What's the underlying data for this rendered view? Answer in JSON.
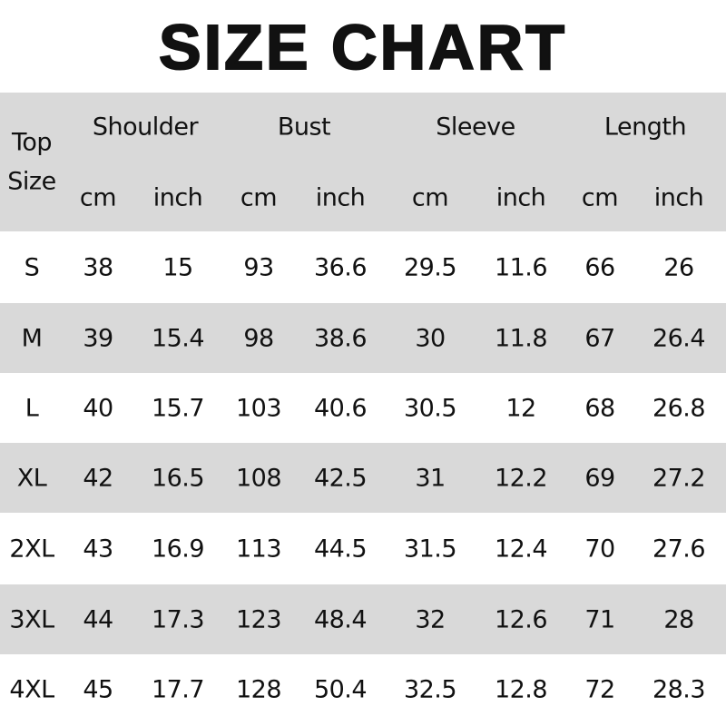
{
  "title": "SIZE CHART",
  "colors": {
    "band": "#d9d9d9",
    "text": "#111111"
  },
  "header": {
    "size_label_line1": "Top",
    "size_label_line2": "Size",
    "groups": [
      "Shoulder",
      "Bust",
      "Sleeve",
      "Length"
    ],
    "units": [
      "cm",
      "inch",
      "cm",
      "inch",
      "cm",
      "inch",
      "cm",
      "inch"
    ]
  },
  "rows": [
    {
      "size": "S",
      "values": [
        "38",
        "15",
        "93",
        "36.6",
        "29.5",
        "11.6",
        "66",
        "26"
      ]
    },
    {
      "size": "M",
      "values": [
        "39",
        "15.4",
        "98",
        "38.6",
        "30",
        "11.8",
        "67",
        "26.4"
      ]
    },
    {
      "size": "L",
      "values": [
        "40",
        "15.7",
        "103",
        "40.6",
        "30.5",
        "12",
        "68",
        "26.8"
      ]
    },
    {
      "size": "XL",
      "values": [
        "42",
        "16.5",
        "108",
        "42.5",
        "31",
        "12.2",
        "69",
        "27.2"
      ]
    },
    {
      "size": "2XL",
      "values": [
        "43",
        "16.9",
        "113",
        "44.5",
        "31.5",
        "12.4",
        "70",
        "27.6"
      ]
    },
    {
      "size": "3XL",
      "values": [
        "44",
        "17.3",
        "123",
        "48.4",
        "32",
        "12.6",
        "71",
        "28"
      ]
    },
    {
      "size": "4XL",
      "values": [
        "45",
        "17.7",
        "128",
        "50.4",
        "32.5",
        "12.8",
        "72",
        "28.3"
      ]
    }
  ]
}
